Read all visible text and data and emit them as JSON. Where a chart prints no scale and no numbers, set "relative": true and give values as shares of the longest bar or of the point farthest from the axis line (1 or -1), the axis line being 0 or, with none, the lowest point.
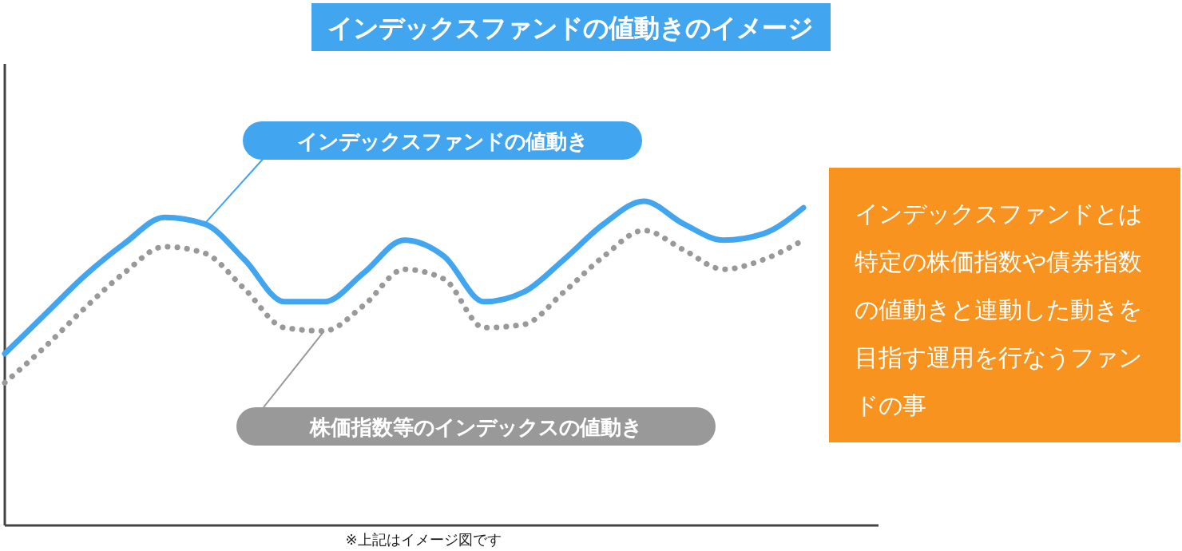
{
  "chart_data": {
    "type": "line",
    "title": "インデックスファンドの値動きのイメージ",
    "relative": true,
    "legend": false,
    "grid": false,
    "categories": [
      null,
      null,
      null,
      null,
      null,
      null,
      null,
      null,
      null,
      null,
      null,
      null,
      null,
      null,
      null,
      null,
      null,
      null,
      null,
      null,
      null
    ],
    "series": [
      {
        "name": "インデックスファンドの値動き",
        "color": "#42a5f0",
        "line_style": "solid",
        "values": [
          0.53,
          0.65,
          0.77,
          0.87,
          0.95,
          0.93,
          0.82,
          0.69,
          0.69,
          0.78,
          0.88,
          0.83,
          0.69,
          0.72,
          0.82,
          0.93,
          1,
          0.93,
          0.88,
          0.9,
          0.98
        ]
      },
      {
        "name": "株価指数等のインデックスの値動き",
        "color": "#999999",
        "line_style": "dotted",
        "values": [
          0.44,
          0.55,
          0.67,
          0.78,
          0.86,
          0.84,
          0.73,
          0.61,
          0.6,
          0.68,
          0.79,
          0.76,
          0.61,
          0.62,
          0.72,
          0.83,
          0.91,
          0.85,
          0.79,
          0.82,
          0.88
        ]
      }
    ],
    "annotations": [
      "インデックスファンドとは特定の株価指数や債券指数の値動きと連動した動きを目指す運用を行なうファンドの事",
      "※上記はイメージ図です"
    ]
  }
}
